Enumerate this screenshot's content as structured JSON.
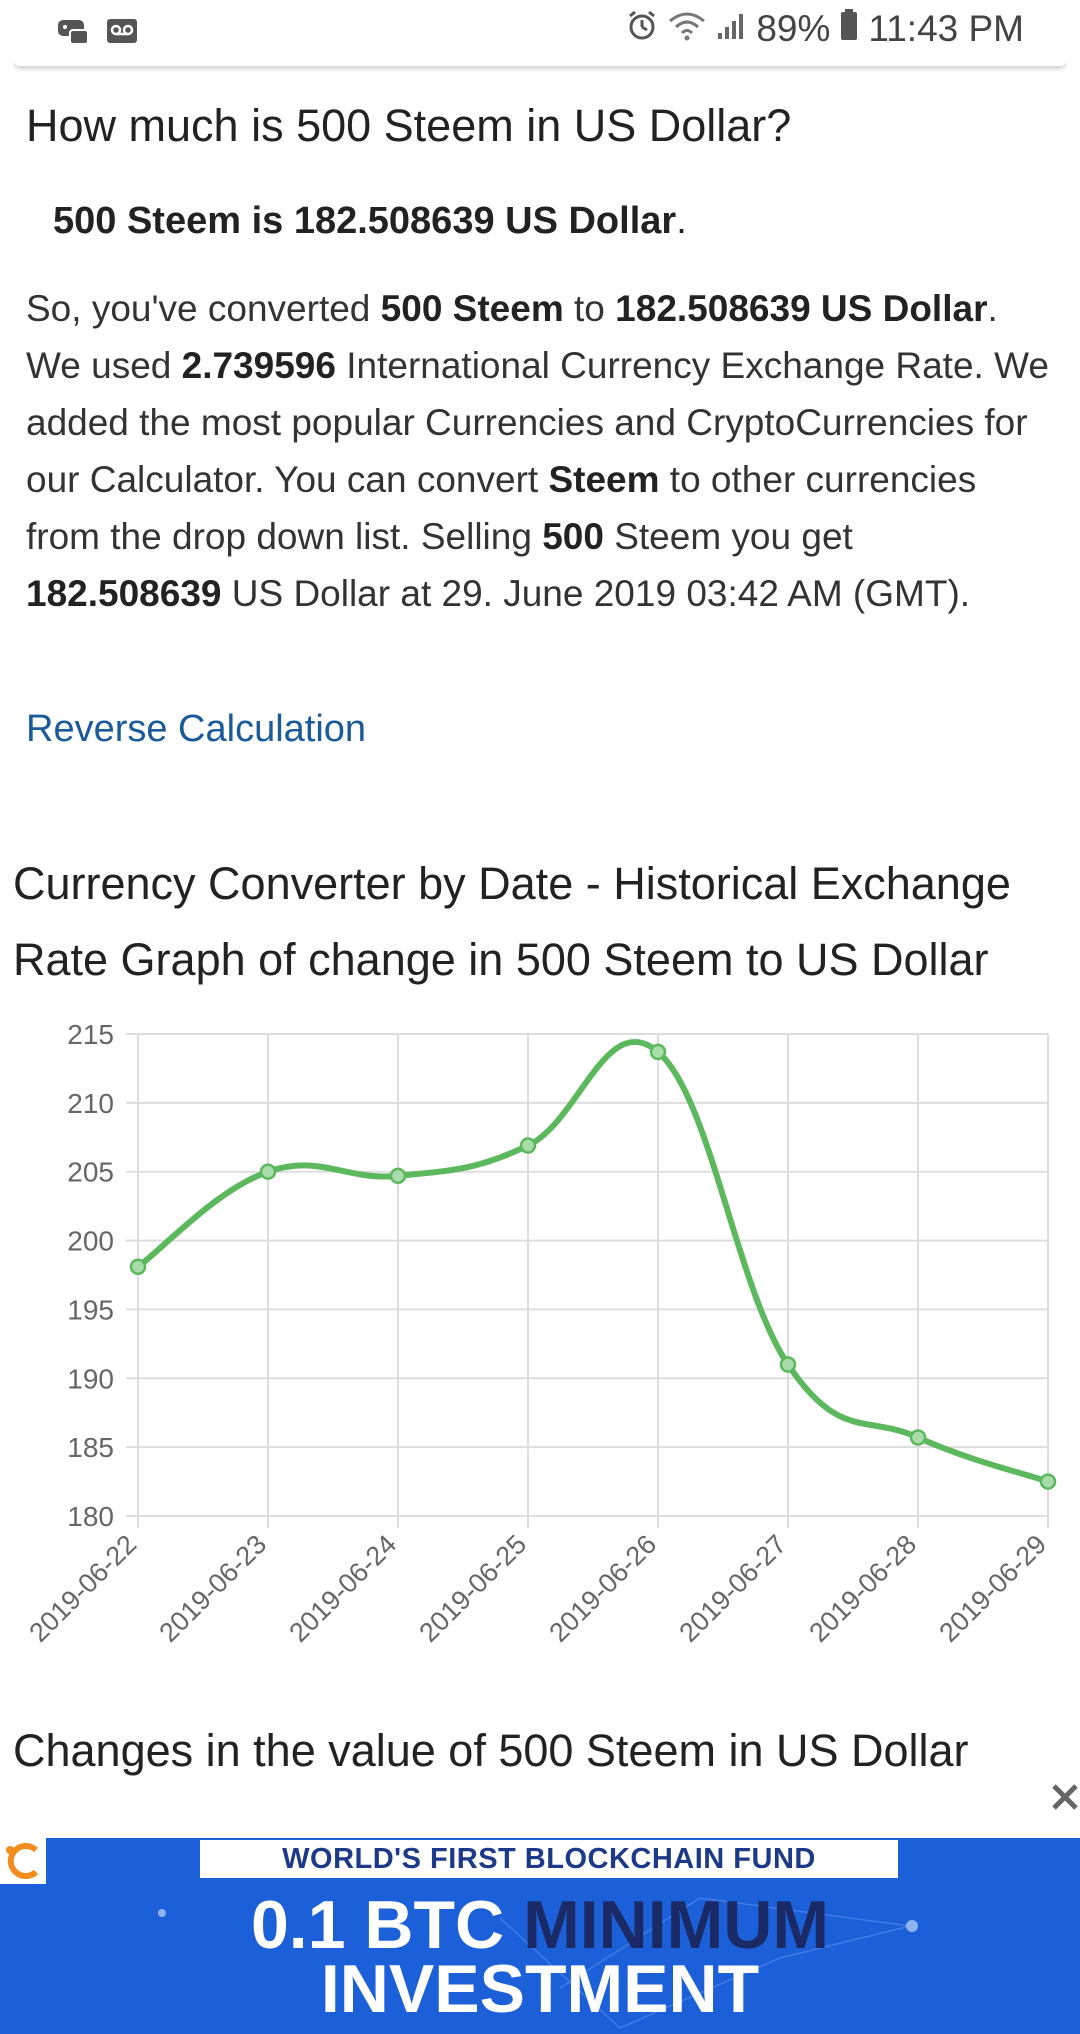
{
  "status_bar": {
    "battery": "89%",
    "time": "11:43 PM"
  },
  "question": "How much is 500 Steem in US Dollar?",
  "answer": {
    "bold": "500 Steem is 182.508639 US Dollar",
    "tail": "."
  },
  "paragraph": {
    "t1": "So, you've converted ",
    "b1": "500 Steem",
    "t2": " to ",
    "b2": "182.508639 US Dollar",
    "t3": ". We used ",
    "b3": "2.739596",
    "t4": " International Currency Exchange Rate. We added the most popular Currencies and CryptoCurrencies for our Calculator. You can convert ",
    "b4": "Steem",
    "t5": " to other currencies from the drop down list. Selling ",
    "b5": "500",
    "t6": " Steem you get ",
    "b6": "182.508639",
    "t7": " US Dollar at 29. June 2019 03:42 AM (GMT)."
  },
  "reverse_link": "Reverse Calculation",
  "graph_title": "Currency Converter by Date - Historical Exchange Rate Graph of change in 500 Steem to US Dollar",
  "chart_data": {
    "type": "line",
    "x": [
      "2019-06-22",
      "2019-06-23",
      "2019-06-24",
      "2019-06-25",
      "2019-06-26",
      "2019-06-27",
      "2019-06-28",
      "2019-06-29"
    ],
    "series": [
      {
        "values": [
          198.1,
          205.0,
          204.7,
          206.9,
          213.7,
          191.0,
          185.7,
          182.5
        ],
        "color": "#5cb85c"
      }
    ],
    "ylim": [
      180,
      215
    ],
    "yticks": [
      180,
      185,
      190,
      195,
      200,
      205,
      210,
      215
    ],
    "grid": true
  },
  "changes_title": "Changes in the value of 500 Steem in US Dollar",
  "ad": {
    "tagline": "WORLD'S FIRST BLOCKCHAIN FUND",
    "line1_a": "0.1 BTC ",
    "line1_b": "MINIMUM",
    "line2": "INVESTMENT"
  },
  "colors": {
    "link": "#1a5a9a",
    "ad_bg": "#1b5fd9",
    "line": "#5cb85c"
  }
}
